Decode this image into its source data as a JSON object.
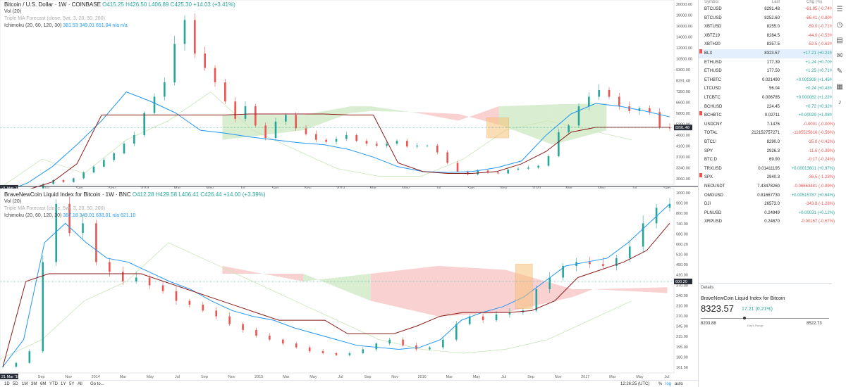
{
  "top_pane": {
    "title": "Bitcoin / U.S. Dollar",
    "interval": "1W",
    "exchange": "COINBASE",
    "ohlc": "O415.25 H426.50 L406.89 C425.30 +14.03 (+3.41%)",
    "indicators": [
      "Vol (20)",
      "Triple MA Forecast (close, 5wt, 3, 20, 50, 200)",
      "Ichimoku (20, 60, 120, 30)"
    ],
    "ichimoku_values": "381.53 349.01 651.04 n/a n/a",
    "price_scale": [
      "20000.00",
      "18000.00",
      "16000.00",
      "14000.00",
      "12000.00",
      "10500.00",
      "9300.00",
      "8291.48",
      "7350.00",
      "6600.00",
      "5800.00",
      "5200.00",
      "4600.00",
      "4100.00",
      "3700.00",
      "3340.00",
      "3060.00"
    ],
    "last_price_tag": "8291.48",
    "time_labels": [
      "May",
      "Jul",
      "Sep",
      "Nov",
      "2018",
      "Mar",
      "May",
      "Jul",
      "Sep",
      "Nov",
      "2019",
      "Mar",
      "May",
      "Jul",
      "Sep",
      "Nov",
      "2020",
      "Mar",
      "May",
      "Jul",
      "Sep"
    ],
    "cursor_date": "21 Mar '16"
  },
  "bottom_pane": {
    "title": "BraveNewCoin Liquid Index for Bitcoin",
    "interval": "1W",
    "exchange": "BNC",
    "ohlc": "O412.28 H429.58 L406.41 C426.44 +14.00 (+3.39%)",
    "indicators": [
      "Vol (20)",
      "Triple MA Forecast (close, 5wt, 3, 20, 50, 200)",
      "Ichimoku (20, 60, 120, 30)"
    ],
    "ichimoku_values": "387.18 349.01 633.01 n/a 621.10",
    "price_scale": [
      "1000.00",
      "900.00",
      "800.00",
      "740.00",
      "680.00",
      "600.20",
      "510.00",
      "450.00",
      "410.00",
      "370.00",
      "340.00",
      "310.00",
      "270.00",
      "245.00",
      "215.00",
      "195.00",
      "180.00",
      "161.50"
    ],
    "last_price_tag": "600.20",
    "time_labels": [
      "Jul",
      "Sep",
      "Nov",
      "2014",
      "Mar",
      "May",
      "Jul",
      "Sep",
      "Nov",
      "2015",
      "Mar",
      "May",
      "Jul",
      "Sep",
      "Nov",
      "2016",
      "Mar",
      "May",
      "Jul",
      "Sep",
      "Nov",
      "2017",
      "Mar",
      "May",
      "Jul"
    ],
    "cursor_date": "21 Mar '16"
  },
  "watchlist": {
    "headers": {
      "symbol": "Symbol",
      "last": "Last",
      "chg": "Chg (%)"
    },
    "rows": [
      {
        "sym": "BTCUSD",
        "last": "8291.48",
        "chg": "-61.85 (-0.74%)",
        "dir": "neg",
        "flag": false
      },
      {
        "sym": "BTCUSD",
        "last": "8252.60",
        "chg": "-66.41 (-0.80%)",
        "dir": "neg",
        "flag": false
      },
      {
        "sym": "XBTUSD",
        "last": "8255.0",
        "chg": "-59.0 (-0.71%)",
        "dir": "neg",
        "flag": false
      },
      {
        "sym": "XBTZ19",
        "last": "8284.5",
        "chg": "-44.0 (-0.53%)",
        "dir": "neg",
        "flag": false
      },
      {
        "sym": "XBTH20",
        "last": "8357.5",
        "chg": "-52.5 (-0.62%)",
        "dir": "neg",
        "flag": false
      },
      {
        "sym": "BLX",
        "last": "8323.57",
        "chg": "+17.21 (+0.21%)",
        "dir": "pos",
        "flag": true
      },
      {
        "sym": "ETHUSD",
        "last": "177.39",
        "chg": "+1.24 (+0.70%)",
        "dir": "pos",
        "flag": false
      },
      {
        "sym": "ETHUSD",
        "last": "177.50",
        "chg": "+1.25 (+0.71%)",
        "dir": "pos",
        "flag": false
      },
      {
        "sym": "ETHBTC",
        "last": "0.021490",
        "chg": "+0.000308 (+1.45%)",
        "dir": "pos",
        "flag": false
      },
      {
        "sym": "LTCUSD",
        "last": "56.04",
        "chg": "+0.24 (+0.43%)",
        "dir": "pos",
        "flag": false
      },
      {
        "sym": "LTCBTC",
        "last": "0.006785",
        "chg": "+0.000082 (+1.22%)",
        "dir": "pos",
        "flag": false
      },
      {
        "sym": "BCHUSD",
        "last": "224.45",
        "chg": "+0.72 (+0.32%)",
        "dir": "pos",
        "flag": false
      },
      {
        "sym": "BCHBTC",
        "last": "0.02711",
        "chg": "+0.00029 (+1.08%)",
        "dir": "pos",
        "flag": true
      },
      {
        "sym": "USDCNY",
        "last": "7.1476",
        "chg": "-0.0001 (-0.00%)",
        "dir": "neg",
        "flag": false
      },
      {
        "sym": "TOTAL",
        "last": "212152757271",
        "chg": "-1185525616 (-0.56%)",
        "dir": "neg",
        "flag": false
      },
      {
        "sym": "BTC1!",
        "last": "8290.0",
        "chg": "-35.0 (-0.42%)",
        "dir": "neg",
        "flag": false
      },
      {
        "sym": "SPY",
        "last": "2926.3",
        "chg": "-11.6 (-0.39%)",
        "dir": "neg",
        "flag": false
      },
      {
        "sym": "BTC.D",
        "last": "69.90",
        "chg": "-0.17 (-0.24%)",
        "dir": "neg",
        "flag": false
      },
      {
        "sym": "TRXUSD",
        "last": "0.01411195",
        "chg": "+0.00013601 (+0.97%)",
        "dir": "pos",
        "flag": false
      },
      {
        "sym": "SPX",
        "last": "2940.3",
        "chg": "-36.5 (-1.23%)",
        "dir": "neg",
        "flag": true
      },
      {
        "sym": "NEOUSDT",
        "last": "7.43478260",
        "chg": "-0.06663481 (-0.89%)",
        "dir": "neg",
        "flag": false
      },
      {
        "sym": "OMGUSD",
        "last": "0.81667730",
        "chg": "+0.00515787 (+0.64%)",
        "dir": "pos",
        "flag": false
      },
      {
        "sym": "DJI",
        "last": "26573.0",
        "chg": "-343.8 (-1.28%)",
        "dir": "neg",
        "flag": false
      },
      {
        "sym": "PLNUSD",
        "last": "0.24949",
        "chg": "+0.00031 (+0.12%)",
        "dir": "pos",
        "flag": false
      },
      {
        "sym": "XRPUSD",
        "last": "0.24670",
        "chg": "-0.00167 (-0.67%)",
        "dir": "neg",
        "flag": false
      }
    ]
  },
  "details": {
    "label": "Details",
    "name": "BraveNewCoin Liquid Index for Bitcoin",
    "price": "8323.57",
    "change": "17.21 (0.21%)",
    "range_low": "8203.88",
    "range_high": "8522.73",
    "range_label": "Day's Range"
  },
  "bottom_bar": {
    "ranges": [
      "1D",
      "5D",
      "1M",
      "3M",
      "6M",
      "YTD",
      "1Y",
      "5Y",
      "All"
    ],
    "goto": "Go to...",
    "time": "12:26:25 (UTC)",
    "options": [
      "%",
      "log",
      "auto"
    ]
  },
  "colors": {
    "up": "#26a69a",
    "down": "#ef5350",
    "tenkan": "#2196f3",
    "kijun": "#8b1a1a",
    "cloud_red": "#f7c5c5",
    "cloud_green": "#cfe9c4",
    "box": "#f6c27a"
  }
}
